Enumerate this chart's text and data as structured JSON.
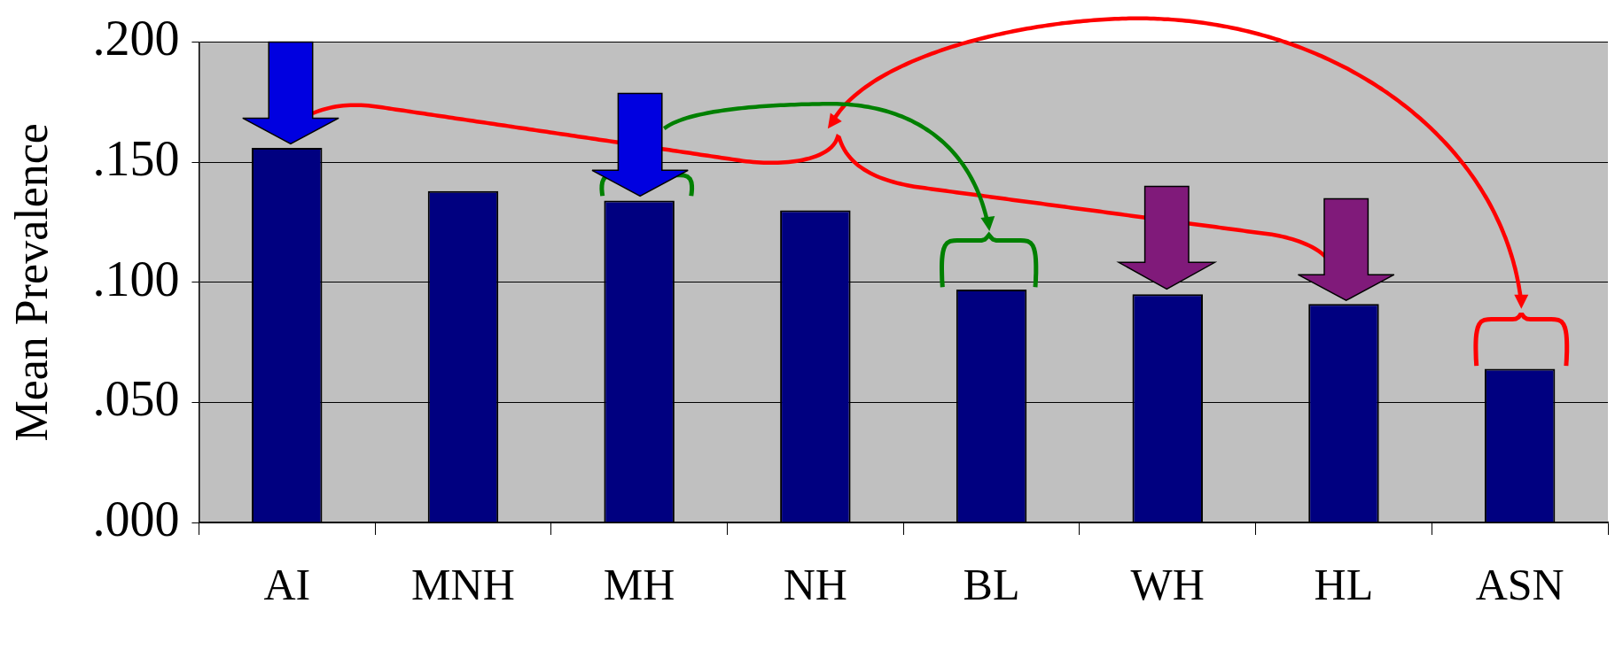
{
  "chart_data": {
    "type": "bar",
    "ylabel": "Mean Prevalence",
    "categories": [
      "AI",
      "MNH",
      "MH",
      "NH",
      "BL",
      "WH",
      "HL",
      "ASN"
    ],
    "values": [
      0.156,
      0.138,
      0.134,
      0.13,
      0.097,
      0.095,
      0.091,
      0.064
    ],
    "color": "#000080",
    "ylim": [
      0,
      0.2
    ],
    "yticks": [
      {
        "value": 0,
        "label": ".000"
      },
      {
        "value": 0.05,
        "label": ".050"
      },
      {
        "value": 0.1,
        "label": ".100"
      },
      {
        "value": 0.15,
        "label": ".150"
      },
      {
        "value": 0.2,
        "label": ".200"
      }
    ],
    "grid": "y"
  }
}
